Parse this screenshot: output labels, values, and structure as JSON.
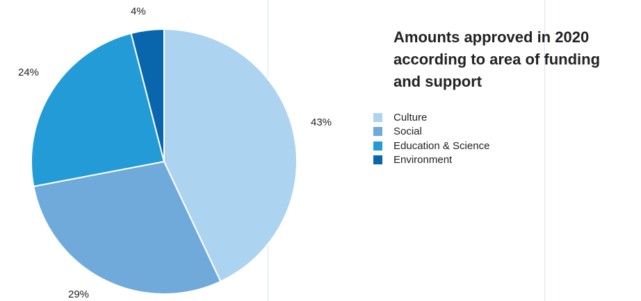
{
  "chart_data": {
    "type": "pie",
    "title_lines": [
      "Amounts approved in 2020",
      "according to area of funding",
      "and support"
    ],
    "legend_position": "right",
    "slices": [
      {
        "label": "Culture",
        "value": 43,
        "value_label": "43%",
        "color": "#acd3f0"
      },
      {
        "label": "Social",
        "value": 29,
        "value_label": "29%",
        "color": "#6faadb"
      },
      {
        "label": "Education & Science",
        "value": 24,
        "value_label": "24%",
        "color": "#239bd7"
      },
      {
        "label": "Environment",
        "value": 4,
        "value_label": "4%",
        "color": "#0966ad"
      }
    ]
  }
}
